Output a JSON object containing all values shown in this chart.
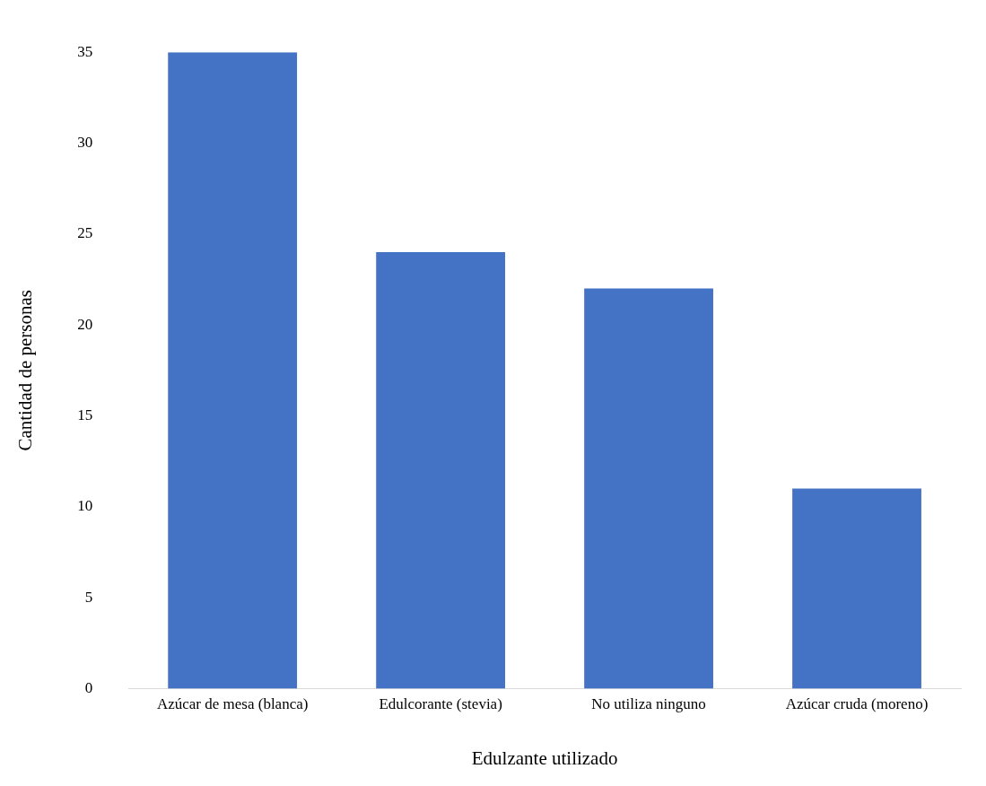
{
  "chart_data": {
    "type": "bar",
    "xlabel": "Edulzante utilizado",
    "ylabel": "Cantidad de personas",
    "categories": [
      "Azúcar de mesa (blanca)",
      "Edulcorante (stevia)",
      "No utiliza ninguno",
      "Azúcar cruda (moreno)"
    ],
    "values": [
      35,
      24,
      22,
      11
    ],
    "color": "#4472c4",
    "ylim": [
      0,
      35
    ],
    "yticks": [
      0,
      5,
      10,
      15,
      20,
      25,
      30,
      35
    ]
  }
}
